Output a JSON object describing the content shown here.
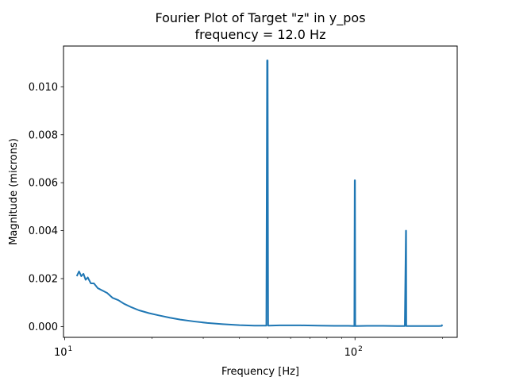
{
  "chart_data": {
    "type": "line",
    "title": "Fourier Plot of Target \"z\" in y_pos",
    "subtitle": "frequency = 12.0 Hz",
    "xlabel": "Frequency [Hz]",
    "ylabel": "Magnitude (microns)",
    "xscale": "log",
    "xlim": [
      9.9,
      225
    ],
    "ylim": [
      -0.00045,
      0.0117
    ],
    "x_ticks": [
      {
        "value": 10,
        "base": "10",
        "exp": "1"
      },
      {
        "value": 100,
        "base": "10",
        "exp": "2"
      }
    ],
    "y_ticks": [
      {
        "value": 0.0,
        "label": "0.000"
      },
      {
        "value": 0.002,
        "label": "0.002"
      },
      {
        "value": 0.004,
        "label": "0.004"
      },
      {
        "value": 0.006,
        "label": "0.006"
      },
      {
        "value": 0.008,
        "label": "0.008"
      },
      {
        "value": 0.01,
        "label": "0.010"
      }
    ],
    "grid": false,
    "line_color": "#1f77b4",
    "series": [
      {
        "x": [
          11.0,
          11.2,
          11.4,
          11.6,
          11.8,
          12.0,
          12.3,
          12.6,
          13.0,
          13.5,
          14.0,
          14.6,
          15.3,
          16.0,
          17.0,
          18.0,
          19.5,
          21.0,
          23.0,
          25.0,
          28.0,
          31.0,
          35.0,
          40.0,
          45.0,
          49.5,
          49.8,
          50.0,
          50.2,
          50.5,
          55.0,
          65.0,
          75.0,
          85.0,
          95.0,
          99.5,
          99.8,
          100.0,
          100.2,
          100.5,
          110.0,
          125.0,
          140.0,
          148.5,
          149.8,
          150.0,
          150.2,
          151.0,
          165.0,
          180.0,
          195.0,
          199.0,
          200.0
        ],
        "y": [
          0.0021,
          0.0023,
          0.0021,
          0.0022,
          0.00195,
          0.00205,
          0.0018,
          0.0018,
          0.0016,
          0.0015,
          0.0014,
          0.0012,
          0.0011,
          0.00095,
          0.0008,
          0.00068,
          0.00056,
          0.00047,
          0.00037,
          0.00029,
          0.00021,
          0.00015,
          0.0001,
          6e-05,
          4e-05,
          4e-05,
          0.0111,
          0.0111,
          4e-05,
          4e-05,
          5e-05,
          5e-05,
          4e-05,
          3e-05,
          3e-05,
          2e-05,
          0.0061,
          0.0061,
          2e-05,
          2e-05,
          3e-05,
          3e-05,
          2e-05,
          2e-05,
          0.004,
          0.004,
          2e-05,
          2e-05,
          2e-05,
          2e-05,
          2e-05,
          3e-05,
          8e-05
        ]
      }
    ]
  }
}
